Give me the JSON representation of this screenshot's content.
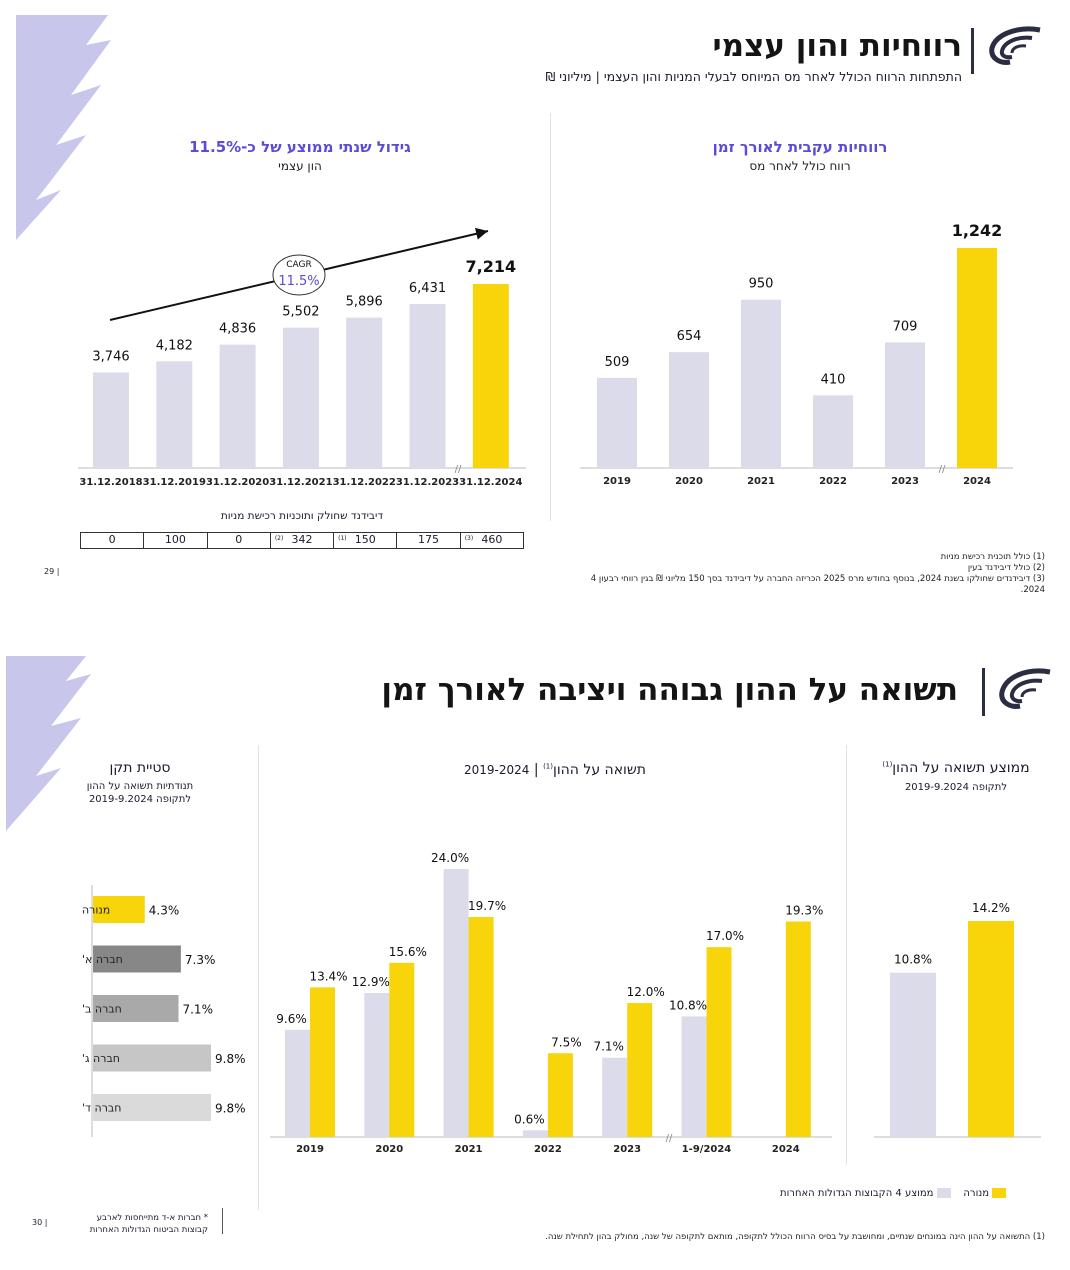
{
  "colors": {
    "yellow": "#f8d40a",
    "grey": "#dcdbe9",
    "accent": "#5b4bd8"
  },
  "slide1": {
    "title": "רווחיות והון עצמי",
    "subtitle": "התפתחות הרווח הכולל לאחר מס המיוחס לבעלי המניות והון העצמי | מיליוני ₪",
    "right_chart_title": "רווחיות עקבית לאורך זמן",
    "right_chart_sub": "רווח כולל לאחר מס",
    "left_chart_title": "גידול שנתי ממוצע של כ-11.5%",
    "left_chart_sub": "הון עצמי",
    "cagr_label": "CAGR",
    "cagr_value": "11.5%",
    "dividend_title": "דיבידנד שחולק ותוכניות רכישת מניות",
    "dividend_cells": [
      {
        "value": "0",
        "sup": ""
      },
      {
        "value": "100",
        "sup": ""
      },
      {
        "value": "0",
        "sup": ""
      },
      {
        "value": "342",
        "sup": "(2)"
      },
      {
        "value": "150",
        "sup": "(1)"
      },
      {
        "value": "175",
        "sup": ""
      },
      {
        "value": "460",
        "sup": "(3)"
      }
    ],
    "footnotes": [
      "(1) כולל תוכנית רכישת מניות",
      "(2) כולל דיבידנד בעין",
      "(3) דיבידנדים שחולקו בשנת 2024, בנוסף בחודש מרס 2025 הכריזה החברה על דיבידנד בסך 150 מליוני ₪ בגין רווחי רבעון 4",
      "2024."
    ],
    "page_num": "29"
  },
  "slide2": {
    "title": "תשואה על ההון גבוהה ויציבה לאורך זמן",
    "avg_title": "ממוצע תשואה על ההון",
    "avg_sup": "(1)",
    "avg_sub": "לתקופה 2019-9.2024",
    "roe_title": "תשואה על ההון",
    "roe_sup": "(1)",
    "roe_period": "2019-2024",
    "std_title": "סטיית תקן",
    "std_sub1": "תנודתיות תשואה על ההון",
    "std_sub2": "לתקופה 2019-9.2024",
    "legend_menora": "מנורה",
    "legend_others": "ממוצע 4 הקבוצות הגדולות האחרות",
    "side_note_1": "* חברות א-ד מתייחסות לארבע",
    "side_note_2": "קבוצות הביטוח הגדולות האחרות",
    "footnote": "(1) התשואה על ההון הינה במונחים שנתיים, ומחושבת על בסיס הרווח הכולל לתקופה, מותאם לתקופה של שנה, מחולק בהון לתחילת שנה.",
    "page_num": "30"
  },
  "chart_data": [
    {
      "type": "bar",
      "title": "רווחיות עקבית לאורך זמן",
      "subtitle": "רווח כולל לאחר מס",
      "categories": [
        "2019",
        "2020",
        "2021",
        "2022",
        "2023",
        "2024"
      ],
      "values": [
        509,
        654,
        950,
        410,
        709,
        1242
      ],
      "labels": [
        "509",
        "654",
        "950",
        "410",
        "709",
        "1,242"
      ],
      "highlight_last": true
    },
    {
      "type": "bar",
      "title": "גידול שנתי ממוצע של כ-11.5%",
      "subtitle": "הון עצמי",
      "categories": [
        "31.12.2018",
        "31.12.2019",
        "31.12.2020",
        "31.12.2021",
        "31.12.2022",
        "31.12.2023",
        "31.12.2024"
      ],
      "values": [
        3746,
        4182,
        4836,
        5502,
        5896,
        6431,
        7214
      ],
      "labels": [
        "3,746",
        "4,182",
        "4,836",
        "5,502",
        "5,896",
        "6,431",
        "7,214"
      ],
      "highlight_last": true
    },
    {
      "type": "bar",
      "title": "ממוצע תשואה על ההון",
      "categories": [
        "ממוצע 4 הקבוצות הגדולות האחרות",
        "מנורה"
      ],
      "values": [
        10.8,
        14.2
      ],
      "labels": [
        "10.8%",
        "14.2%"
      ]
    },
    {
      "type": "bar",
      "title": "תשואה על ההון",
      "categories": [
        "2019",
        "2020",
        "2021",
        "2022",
        "2023",
        "1-9/2024",
        "2024"
      ],
      "series": [
        {
          "name": "ממוצע 4 הקבוצות הגדולות האחרות",
          "values": [
            9.6,
            12.9,
            24.0,
            0.6,
            7.1,
            10.8,
            null
          ],
          "labels": [
            "9.6%",
            "12.9%",
            "24.0%",
            "0.6%",
            "7.1%",
            "10.8%",
            ""
          ]
        },
        {
          "name": "מנורה",
          "values": [
            13.4,
            15.6,
            19.7,
            7.5,
            12.0,
            17.0,
            19.3
          ],
          "labels": [
            "13.4%",
            "15.6%",
            "19.7%",
            "7.5%",
            "12.0%",
            "17.0%",
            "19.3%"
          ]
        }
      ]
    },
    {
      "type": "bar",
      "title": "סטיית תקן",
      "orientation": "horizontal",
      "categories": [
        "מנורה",
        "חברה א'",
        "חברה ב'",
        "חברה ג'",
        "חברה ד'"
      ],
      "values": [
        4.3,
        7.3,
        7.1,
        9.8,
        9.8
      ],
      "labels": [
        "4.3%",
        "7.3%",
        "7.1%",
        "9.8%",
        "9.8%"
      ],
      "colors": [
        "#f8d40a",
        "#878787",
        "#a9a9a9",
        "#c6c6c6",
        "#dadada"
      ]
    }
  ]
}
